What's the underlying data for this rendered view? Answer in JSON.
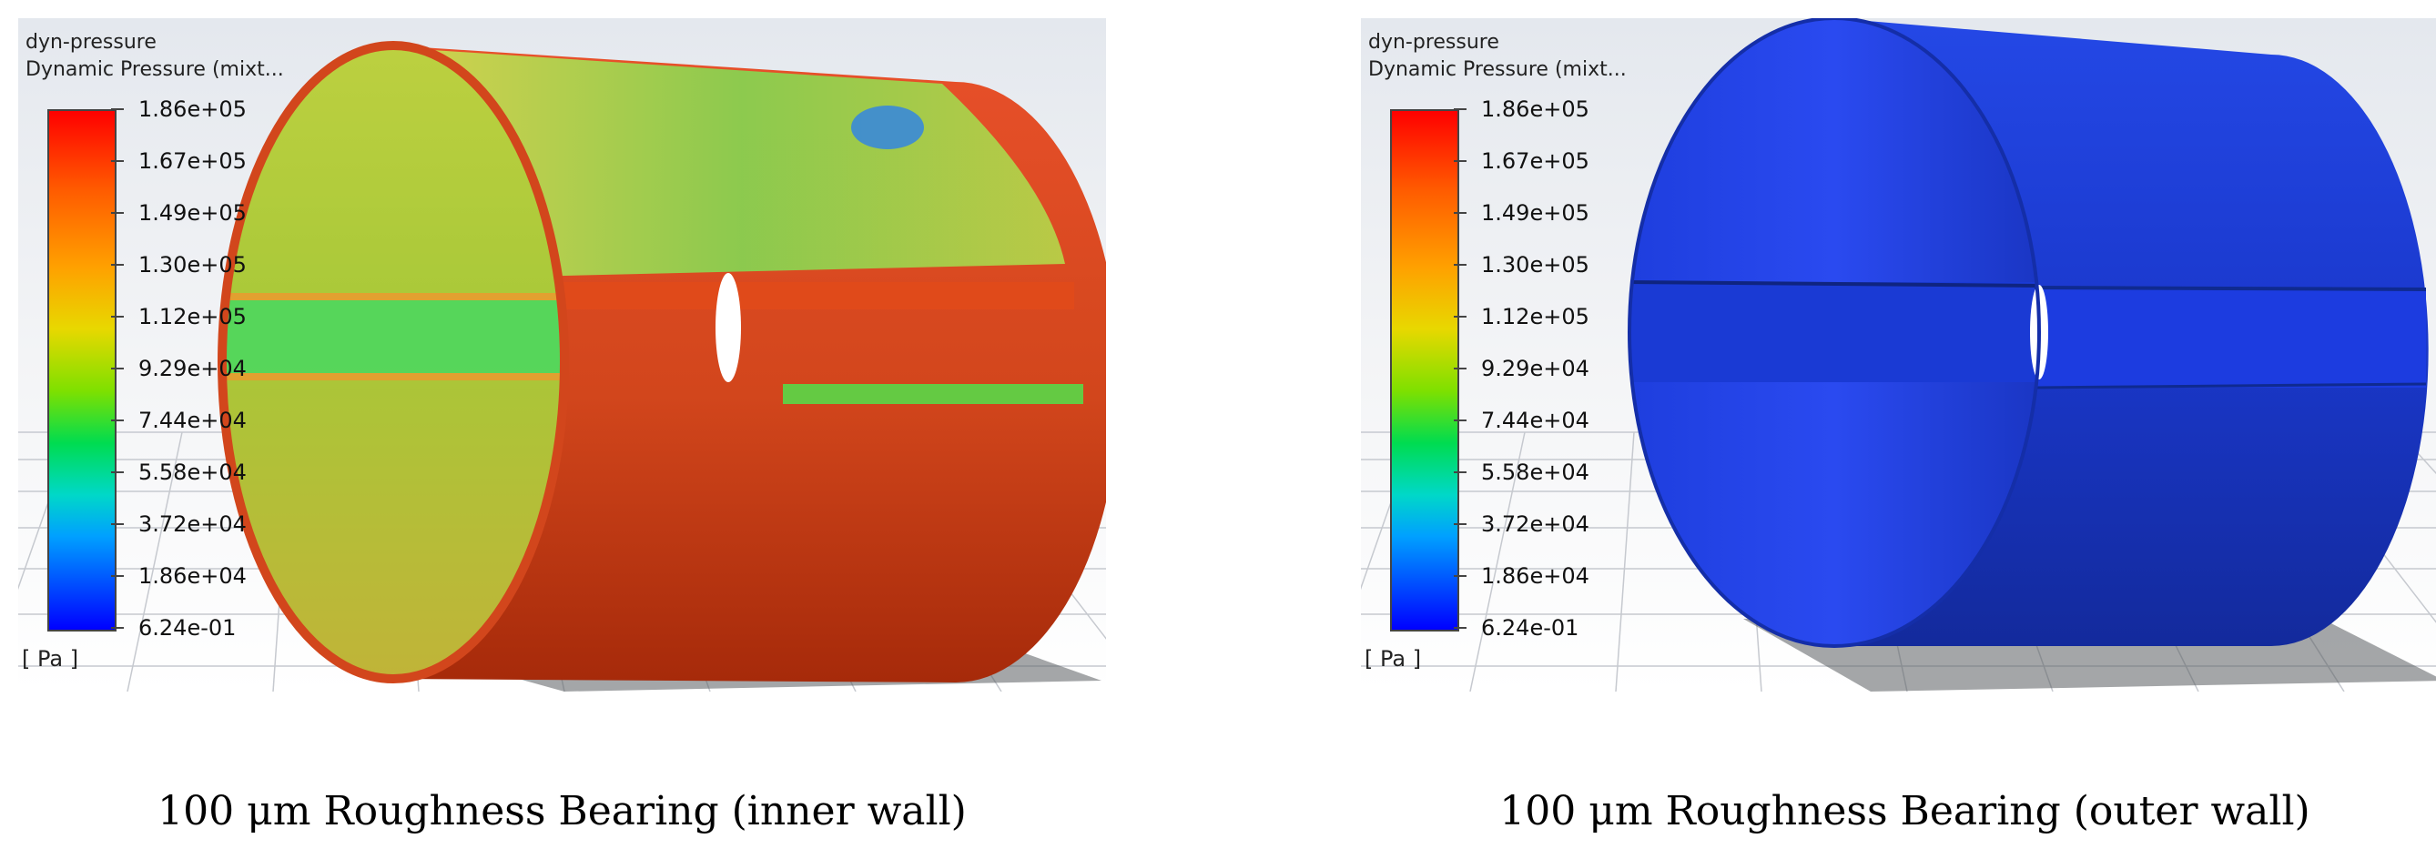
{
  "panels": [
    {
      "legend": {
        "title_line1": "dyn-pressure",
        "title_line2": "Dynamic Pressure (mixt...",
        "ticks": [
          "1.86e+05",
          "1.67e+05",
          "1.49e+05",
          "1.30e+05",
          "1.12e+05",
          "9.29e+04",
          "7.44e+04",
          "5.58e+04",
          "3.72e+04",
          "1.86e+04",
          "6.24e-01"
        ],
        "units": "[ Pa ]",
        "range": [
          0.624,
          186000
        ],
        "colormap": "rainbow (blue-min to red-max)"
      },
      "caption": "100 μm Roughness Bearing (inner wall)",
      "render": {
        "view": "inner wall",
        "surface_colors": [
          "#e8462a",
          "#c43a16",
          "#a8c23a",
          "#3ad250",
          "#2a7ad0"
        ]
      }
    },
    {
      "legend": {
        "title_line1": "dyn-pressure",
        "title_line2": "Dynamic Pressure (mixt...",
        "ticks": [
          "1.86e+05",
          "1.67e+05",
          "1.49e+05",
          "1.30e+05",
          "1.12e+05",
          "9.29e+04",
          "7.44e+04",
          "5.58e+04",
          "3.72e+04",
          "1.86e+04",
          "6.24e-01"
        ],
        "units": "[ Pa ]",
        "range": [
          0.624,
          186000
        ],
        "colormap": "rainbow (blue-min to red-max)"
      },
      "caption": "100 μm Roughness Bearing (outer wall)",
      "render": {
        "view": "outer wall",
        "surface_colors": [
          "#1f3fe0",
          "#1836c8",
          "#142ea8"
        ]
      }
    }
  ]
}
